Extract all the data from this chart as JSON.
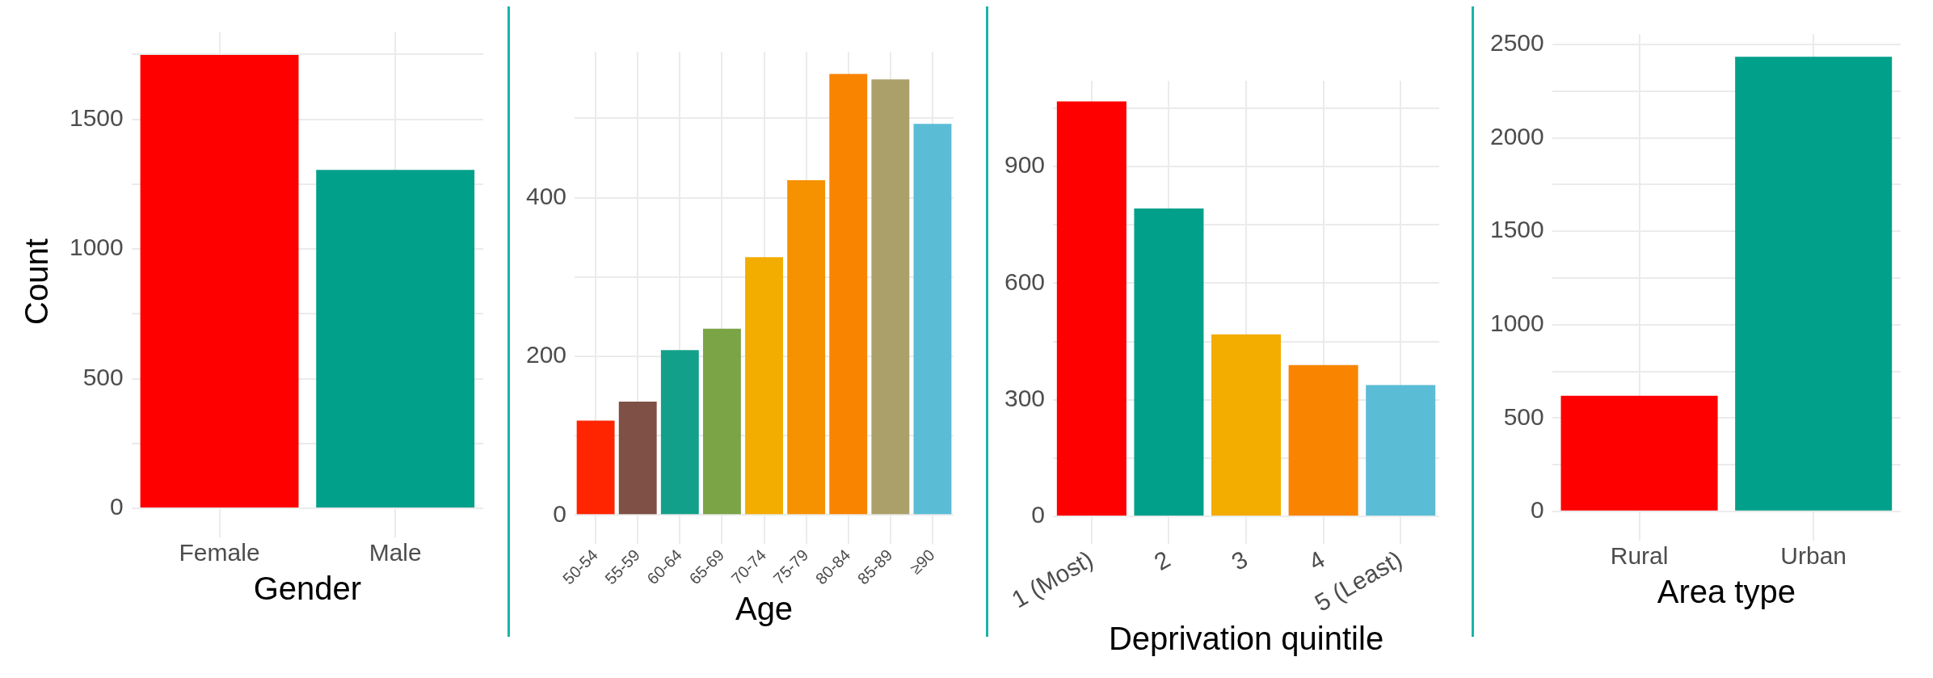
{
  "chart_data": [
    {
      "type": "bar",
      "xlabel": "Gender",
      "ylabel": "Count",
      "categories": [
        "Female",
        "Male"
      ],
      "values": [
        1748,
        1305
      ],
      "colors": [
        "#ff0000",
        "#00a08a"
      ],
      "ylim": [
        -87,
        1835
      ],
      "yticks": [
        0,
        {
          "value": 250,
          "label": null
        },
        500,
        {
          "value": 750,
          "label": null
        },
        1000,
        {
          "value": 1250,
          "label": null
        },
        1500,
        {
          "value": 1750,
          "label": null
        }
      ],
      "grid": true
    },
    {
      "type": "bar",
      "xlabel": "Age",
      "categories": [
        "50-54",
        "55-59",
        "60-64",
        "65-69",
        "70-74",
        "75-79",
        "80-84",
        "85-89",
        "≥90"
      ],
      "values": [
        119,
        143,
        208,
        235,
        325,
        422,
        556,
        549,
        493
      ],
      "colors": [
        "#ff2500",
        "#7f5045",
        "#13a08a",
        "#7ba446",
        "#f2ad00",
        "#f69100",
        "#f98400",
        "#aba06a",
        "#5bbcd6"
      ],
      "ylim": [
        -28,
        584
      ],
      "yticks": [
        0,
        {
          "value": 100,
          "label": null
        },
        200,
        {
          "value": 300,
          "label": null
        },
        400,
        {
          "value": 500,
          "label": null
        }
      ],
      "grid": true
    },
    {
      "type": "bar",
      "xlabel": "Deprivation quintile",
      "categories": [
        "1 (Most)",
        "2",
        "3",
        "4",
        "5 (Least)"
      ],
      "values": [
        1067,
        792,
        468,
        389,
        338
      ],
      "colors": [
        "#ff0000",
        "#00a08a",
        "#f2ad00",
        "#f98400",
        "#5bbcd6"
      ],
      "ylim": [
        -53,
        1120
      ],
      "yticks": [
        0,
        {
          "value": 150,
          "label": null
        },
        300,
        {
          "value": 450,
          "label": null
        },
        600,
        {
          "value": 750,
          "label": null
        },
        900,
        {
          "value": 1050,
          "label": null
        }
      ],
      "grid": true
    },
    {
      "type": "bar",
      "xlabel": "Area type",
      "categories": [
        "Rural",
        "Urban"
      ],
      "values": [
        619,
        2435
      ],
      "colors": [
        "#ff0000",
        "#00a08a"
      ],
      "ylim": [
        -122,
        2557
      ],
      "yticks": [
        0,
        {
          "value": 250,
          "label": null
        },
        500,
        {
          "value": 750,
          "label": null
        },
        1000,
        {
          "value": 1250,
          "label": null
        },
        1500,
        {
          "value": 1750,
          "label": null
        },
        2000,
        {
          "value": 2250,
          "label": null
        },
        2500
      ],
      "grid": true
    }
  ]
}
